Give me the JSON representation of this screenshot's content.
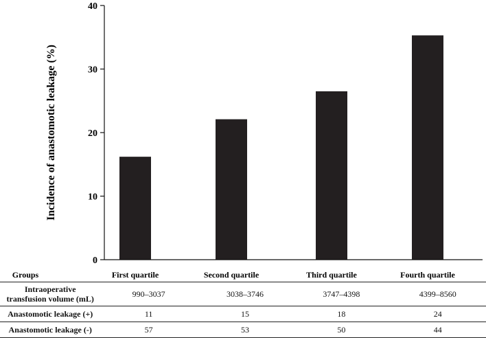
{
  "chart_data": {
    "type": "bar",
    "categories": [
      "First quartile",
      "Second quartile",
      "Third quartile",
      "Fourth quartile"
    ],
    "values": [
      16.2,
      22.1,
      26.5,
      35.3
    ],
    "ylabel": "Incidence of anastomotic leakage (%)",
    "xlabel": "",
    "ylim": [
      0,
      40
    ],
    "yticks": [
      0,
      10,
      20,
      30,
      40
    ],
    "bar_color": "#231f20",
    "groups_label": "Groups"
  },
  "table": {
    "rows": [
      {
        "label_line1": "Intraoperative",
        "label_line2": "transfusion volume (mL)",
        "values": [
          "990–3037",
          "3038–3746",
          "3747–4398",
          "4399–8560"
        ]
      },
      {
        "label": "Anastomotic leakage (+)",
        "values": [
          "11",
          "15",
          "18",
          "24"
        ]
      },
      {
        "label": "Anastomotic leakage (-)",
        "values": [
          "57",
          "53",
          "50",
          "44"
        ]
      }
    ]
  }
}
